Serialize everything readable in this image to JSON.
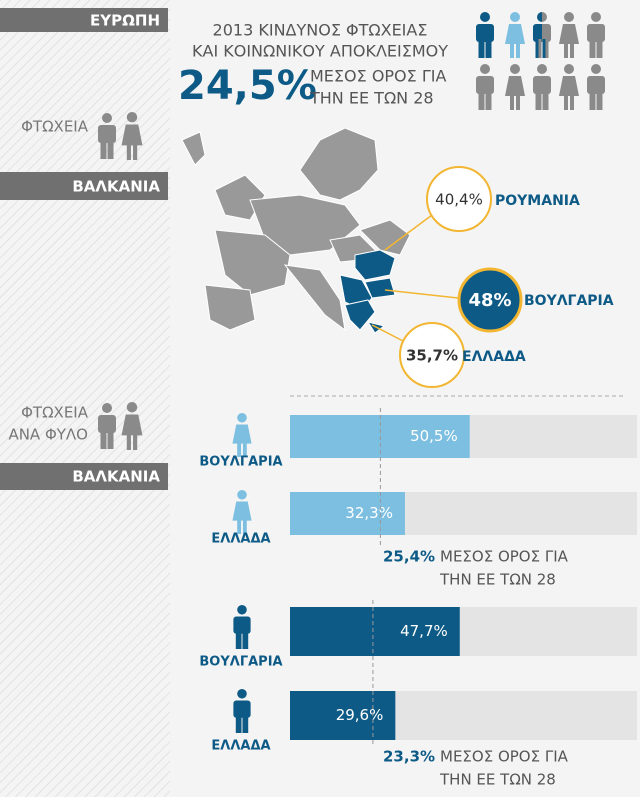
{
  "sidebar": {
    "europe": "ΕΥΡΩΠΗ",
    "poverty": "ΦΤΩΧΕΙΑ",
    "balkans": "ΒΑΛΚΑΝΙΑ",
    "poverty_by_gender": [
      "ΦΤΩΧΕΙΑ",
      "ΑΝΑ ΦΥΛΟ"
    ],
    "balkans_2": "ΒΑΛΚΑΝΙΑ"
  },
  "header": {
    "title": [
      "2013 ΚΙΝΔΥΝΟΣ ΦΤΩΧΕΙΑΣ",
      "ΚΑΙ ΚΟΙΝΩΝΙΚΟΥ ΑΠΟΚΛΕΙΣΜΟΥ"
    ],
    "average": "24,5%",
    "average_caption": [
      "ΜΕΣΟΣ ΟΡΟΣ ΓΙΑ",
      "ΤΗΝ ΕΕ ΤΩΝ 28"
    ]
  },
  "map": {
    "callouts": [
      {
        "value": "40,4%",
        "country": "ΡΟΥΜΑΝΙΑ"
      },
      {
        "value": "48%",
        "country": "ΒΟΥΛΓΑΡΙΑ"
      },
      {
        "value": "35,7%",
        "country": "ΕΛΛΑΔΑ"
      }
    ]
  },
  "gender_bars": {
    "xlim": [
      0,
      97.5
    ],
    "groups": [
      {
        "color": "#7dbfe0",
        "categories": [
          "ΒΟΥΛΓΑΡΙΑ",
          "ΕΛΛΑΔΑ"
        ],
        "values": [
          50.5,
          32.3
        ],
        "value_labels": [
          "50,5%",
          "32,3%"
        ],
        "average": 25.4,
        "average_label": "25,4%",
        "average_caption": [
          "ΜΕΣΟΣ ΟΡΟΣ ΓΙΑ",
          "ΤΗΝ ΕΕ ΤΩΝ 28"
        ]
      },
      {
        "color": "#0d5a86",
        "categories": [
          "ΒΟΥΛΓΑΡΙΑ",
          "ΕΛΛΑΔΑ"
        ],
        "values": [
          47.7,
          29.6
        ],
        "value_labels": [
          "47,7%",
          "29,6%"
        ],
        "average": 23.3,
        "average_label": "23,3%",
        "average_caption": [
          "ΜΕΣΟΣ ΟΡΟΣ ΓΙΑ",
          "ΤΗΝ ΕΕ ΤΩΝ 28"
        ]
      }
    ]
  }
}
